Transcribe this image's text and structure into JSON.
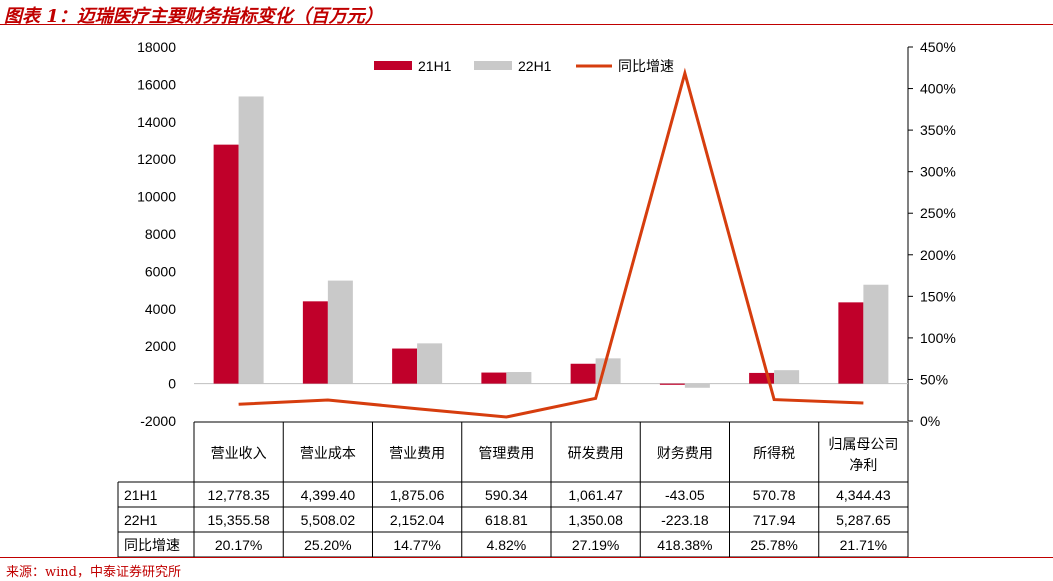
{
  "title": "图表 1：迈瑞医疗主要财务指标变化（百万元）",
  "source": "来源：wind，中泰证券研究所",
  "colors": {
    "series_21h1": "#c0002a",
    "series_22h1": "#c9c9c9",
    "growth_line": "#d63d0e",
    "accent": "#c00000"
  },
  "chart_data": {
    "type": "bar",
    "categories": [
      "营业收入",
      "营业成本",
      "营业费用",
      "管理费用",
      "研发费用",
      "财务费用",
      "所得税",
      "归属母公司净利"
    ],
    "category_lines": [
      [
        "营业收入"
      ],
      [
        "营业成本"
      ],
      [
        "营业费用"
      ],
      [
        "管理费用"
      ],
      [
        "研发费用"
      ],
      [
        "财务费用"
      ],
      [
        "所得税"
      ],
      [
        "归属母公司",
        "净利"
      ]
    ],
    "series": [
      {
        "name": "21H1",
        "values": [
          12778.35,
          4399.4,
          1875.06,
          590.34,
          1061.47,
          -43.05,
          570.78,
          4344.43
        ]
      },
      {
        "name": "22H1",
        "values": [
          15355.58,
          5508.02,
          2152.04,
          618.81,
          1350.08,
          -223.18,
          717.94,
          5287.65
        ]
      }
    ],
    "line_series": {
      "name": "同比增速",
      "values": [
        20.17,
        25.2,
        14.77,
        4.82,
        27.19,
        418.38,
        25.78,
        21.71
      ],
      "unit": "%",
      "axis": "right"
    },
    "ylim": [
      -2000,
      18000
    ],
    "yticks": [
      -2000,
      0,
      2000,
      4000,
      6000,
      8000,
      10000,
      12000,
      14000,
      16000,
      18000
    ],
    "y2lim": [
      0,
      450
    ],
    "y2ticks": [
      "0%",
      "50%",
      "100%",
      "150%",
      "200%",
      "250%",
      "300%",
      "350%",
      "400%",
      "450%"
    ],
    "legend": [
      "21H1",
      "22H1",
      "同比增速"
    ],
    "legend_placement": "top-center",
    "grid": false,
    "table": {
      "row_labels": [
        "21H1",
        "22H1",
        "同比增速"
      ],
      "rows": [
        [
          "12,778.35",
          "4,399.40",
          "1,875.06",
          "590.34",
          "1,061.47",
          "-43.05",
          "570.78",
          "4,344.43"
        ],
        [
          "15,355.58",
          "5,508.02",
          "2,152.04",
          "618.81",
          "1,350.08",
          "-223.18",
          "717.94",
          "5,287.65"
        ],
        [
          "20.17%",
          "25.20%",
          "14.77%",
          "4.82%",
          "27.19%",
          "418.38%",
          "25.78%",
          "21.71%"
        ]
      ]
    }
  }
}
